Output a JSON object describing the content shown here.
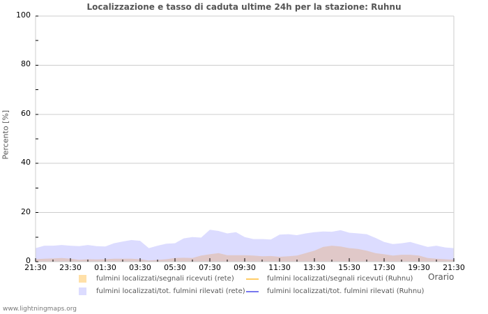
{
  "header": {
    "title": "Localizzazione e tasso di caduta ultime 24h per la stazione: Ruhnu"
  },
  "axes": {
    "ylabel": "Percento   [%]",
    "xlabel": "Orario",
    "yticks": [
      "100",
      "80",
      "60",
      "40",
      "20",
      "0"
    ],
    "xticks": [
      "21:30",
      "23:30",
      "01:30",
      "03:30",
      "05:30",
      "07:30",
      "09:30",
      "11:30",
      "13:30",
      "15:30",
      "17:30",
      "19:30",
      "21:30"
    ]
  },
  "legend": {
    "items": [
      {
        "label": "fulmini localizzati/segnali ricevuti (rete)",
        "type": "area",
        "color": "#ffe0a8"
      },
      {
        "label": "fulmini localizzati/segnali ricevuti (Ruhnu)",
        "type": "line",
        "color": "#ffcc66"
      },
      {
        "label": "fulmini localizzati/tot. fulmini rilevati (rete)",
        "type": "area",
        "color": "#dcdcff"
      },
      {
        "label": "fulmini localizzati/tot. fulmini rilevati (Ruhnu)",
        "type": "line",
        "color": "#7777ee"
      }
    ]
  },
  "footer": {
    "credit": "www.lightningmaps.org"
  },
  "chart_data": {
    "type": "area",
    "title": "Localizzazione e tasso di caduta ultime 24h per la stazione: Ruhnu",
    "xlabel": "Orario",
    "ylabel": "Percento [%]",
    "ylim": [
      0,
      100
    ],
    "yticks": [
      0,
      20,
      40,
      60,
      80,
      100
    ],
    "grid": true,
    "legend_position": "bottom",
    "x": [
      "21:30",
      "22:00",
      "22:30",
      "23:00",
      "23:30",
      "00:00",
      "00:30",
      "01:00",
      "01:30",
      "02:00",
      "02:30",
      "03:00",
      "03:30",
      "04:00",
      "04:30",
      "05:00",
      "05:30",
      "06:00",
      "06:30",
      "07:00",
      "07:30",
      "08:00",
      "08:30",
      "09:00",
      "09:30",
      "10:00",
      "10:30",
      "11:00",
      "11:30",
      "12:00",
      "12:30",
      "13:00",
      "13:30",
      "14:00",
      "14:30",
      "15:00",
      "15:30",
      "16:00",
      "16:30",
      "17:00",
      "17:30",
      "18:00",
      "18:30",
      "19:00",
      "19:30",
      "20:00",
      "20:30",
      "21:00",
      "21:30"
    ],
    "series": [
      {
        "name": "fulmini localizzati/tot. fulmini rilevati (rete)",
        "type": "area",
        "color": "#dcdcff",
        "values": [
          5.5,
          6.5,
          6.5,
          6.8,
          6.5,
          6.3,
          6.8,
          6.3,
          6.2,
          7.5,
          8.2,
          8.8,
          8.5,
          5.5,
          6.5,
          7.3,
          7.5,
          9.5,
          10,
          9.8,
          13,
          12.5,
          11.5,
          12,
          10,
          9.2,
          9.2,
          9,
          11,
          11.2,
          10.8,
          11.5,
          12,
          12.3,
          12.2,
          12.8,
          11.8,
          11.5,
          11.2,
          9.7,
          8,
          7.2,
          7.5,
          8,
          7,
          6,
          6.5,
          5.8,
          5.5
        ]
      },
      {
        "name": "fulmini localizzati/segnali ricevuti (rete)",
        "type": "area",
        "color": "#ffe0a8",
        "values": [
          1.0,
          1.2,
          1.3,
          1.5,
          1.2,
          0.8,
          1.0,
          0.9,
          1.0,
          1.2,
          1.2,
          1.2,
          1.0,
          0.5,
          0.7,
          1.0,
          1.5,
          1.6,
          1.5,
          2.5,
          3.0,
          3.5,
          2.6,
          2.6,
          2.6,
          2.5,
          2.2,
          2.3,
          2.0,
          2.2,
          2.5,
          3.5,
          4.5,
          6.0,
          6.5,
          6.2,
          5.5,
          5.2,
          4.5,
          3.5,
          3.0,
          2.5,
          2.8,
          2.8,
          2.5,
          1.5,
          1.2,
          1.0,
          0.8
        ]
      },
      {
        "name": "fulmini localizzati/segnali ricevuti (Ruhnu)",
        "type": "line",
        "color": "#ffcc66",
        "values": []
      },
      {
        "name": "fulmini localizzati/tot. fulmini rilevati (Ruhnu)",
        "type": "line",
        "color": "#7777ee",
        "values": []
      }
    ]
  }
}
